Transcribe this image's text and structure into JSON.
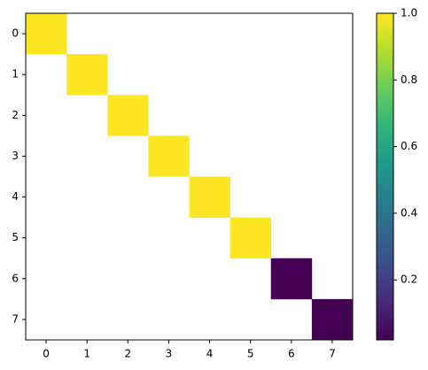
{
  "chart_data": {
    "type": "heatmap",
    "x": [
      "0",
      "1",
      "2",
      "3",
      "4",
      "5",
      "6",
      "7"
    ],
    "y": [
      "0",
      "1",
      "2",
      "3",
      "4",
      "5",
      "6",
      "7"
    ],
    "z": [
      [
        1,
        null,
        null,
        null,
        null,
        null,
        null,
        null
      ],
      [
        null,
        1,
        null,
        null,
        null,
        null,
        null,
        null
      ],
      [
        null,
        null,
        1,
        null,
        null,
        null,
        null,
        null
      ],
      [
        null,
        null,
        null,
        1,
        null,
        null,
        null,
        null
      ],
      [
        null,
        null,
        null,
        null,
        1,
        null,
        null,
        null
      ],
      [
        null,
        null,
        null,
        null,
        null,
        1,
        null,
        null
      ],
      [
        null,
        null,
        null,
        null,
        null,
        null,
        0.02,
        null
      ],
      [
        null,
        null,
        null,
        null,
        null,
        null,
        null,
        0.02
      ]
    ],
    "colormap": "viridis",
    "clim": [
      0.02,
      1
    ],
    "cticks": [
      0.2,
      0.4,
      0.6,
      0.8,
      {
        "value": 1,
        "label": "1.0"
      }
    ]
  }
}
